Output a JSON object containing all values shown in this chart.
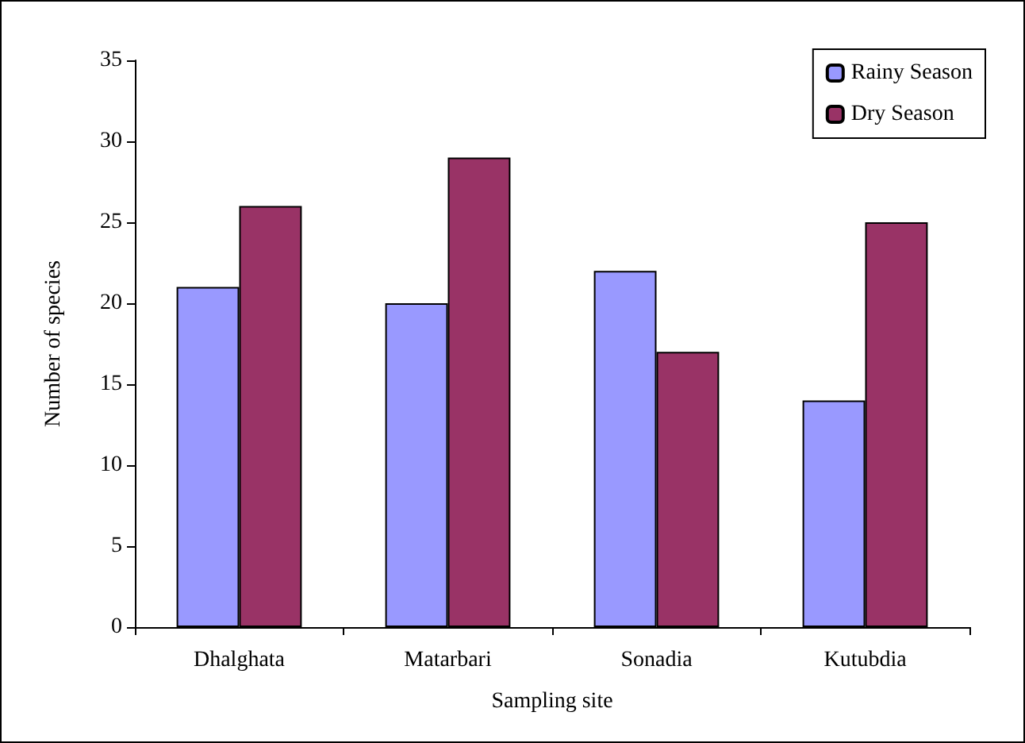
{
  "chart_data": {
    "type": "bar",
    "xlabel": "Sampling site",
    "ylabel": "Number of species",
    "categories": [
      "Dhalghata",
      "Matarbari",
      "Sonadia",
      "Kutubdia"
    ],
    "series": [
      {
        "name": "Rainy Season",
        "color": "#9999ff",
        "values": [
          21,
          20,
          22,
          14
        ]
      },
      {
        "name": "Dry Season",
        "color": "#993366",
        "values": [
          26,
          29,
          17,
          25
        ]
      }
    ],
    "ylim": [
      0,
      35
    ],
    "yticks": [
      0,
      5,
      10,
      15,
      20,
      25,
      30,
      35
    ],
    "grid": false,
    "legend": "top right"
  }
}
